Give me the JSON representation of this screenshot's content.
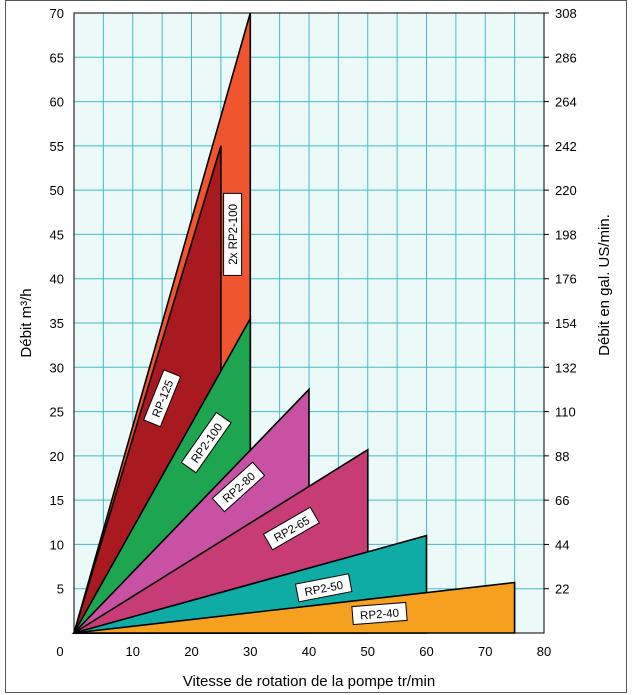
{
  "chart_data": {
    "type": "area",
    "title": "",
    "xlabel": "Vitesse de rotation de la pompe tr/min",
    "ylabel": "Débit m³/h",
    "y2label": "Débit en gal. US/min.",
    "xlim": [
      0,
      80
    ],
    "ylim": [
      0,
      70
    ],
    "y2lim": [
      0,
      308
    ],
    "grid": true,
    "xticks": [
      "0",
      "10",
      "20",
      "30",
      "40",
      "50",
      "60",
      "70",
      "80"
    ],
    "yticks": [
      "5",
      "10",
      "15",
      "20",
      "25",
      "30",
      "35",
      "40",
      "45",
      "50",
      "55",
      "60",
      "65",
      "70"
    ],
    "y2ticks": [
      "22",
      "44",
      "66",
      "88",
      "110",
      "132",
      "154",
      "176",
      "198",
      "220",
      "242",
      "264",
      "286",
      "308"
    ],
    "series": [
      {
        "name": "2x RP2-100",
        "color": "#ef5630",
        "x_max": 30,
        "y_max": 70,
        "label_pos": [
          27,
          45
        ],
        "label_angle": -90
      },
      {
        "name": "RP-125",
        "color": "#a81a20",
        "x_max": 25,
        "y_max": 55,
        "label_pos": [
          15,
          26.5
        ],
        "label_angle": -68
      },
      {
        "name": "RP2-100",
        "color": "#1da64f",
        "x_max": 30,
        "y_max": 35.5,
        "label_pos": [
          22.5,
          21.5
        ],
        "label_angle": -55
      },
      {
        "name": "RP2-80",
        "color": "#c851a4",
        "x_max": 40,
        "y_max": 27.5,
        "label_pos": [
          28,
          16.5
        ],
        "label_angle": -42
      },
      {
        "name": "RP2-65",
        "color": "#c73c74",
        "x_max": 50,
        "y_max": 20.7,
        "label_pos": [
          37,
          11.8
        ],
        "label_angle": -30
      },
      {
        "name": "RP2-50",
        "color": "#0eaca4",
        "x_max": 60,
        "y_max": 11,
        "label_pos": [
          42.5,
          5.1
        ],
        "label_angle": -11
      },
      {
        "name": "RP2-40",
        "color": "#f5a11f",
        "x_max": 75,
        "y_max": 5.7,
        "label_pos": [
          52,
          2.2
        ],
        "label_angle": -4.5
      }
    ]
  }
}
